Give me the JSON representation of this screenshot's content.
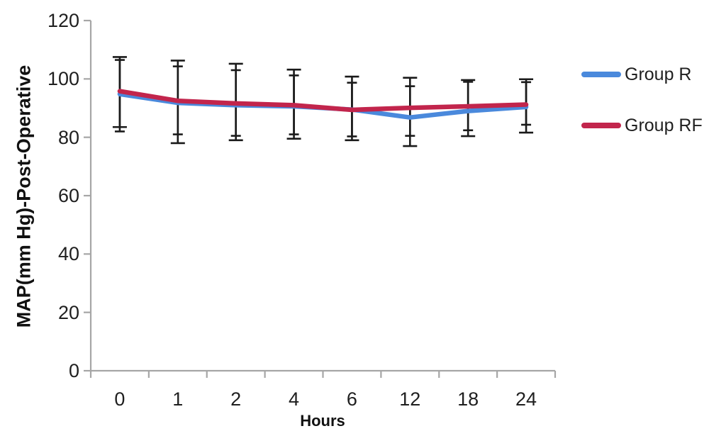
{
  "figure": {
    "background": "#ffffff"
  },
  "chart_data": {
    "type": "line",
    "title": "",
    "xlabel": "Hours",
    "ylabel": "MAP(mm Hg)-Post-Operative",
    "categories": [
      "0",
      "1",
      "2",
      "4",
      "6",
      "12",
      "18",
      "24"
    ],
    "yticks": [
      0,
      20,
      40,
      60,
      80,
      100,
      120
    ],
    "ylim": [
      0,
      120
    ],
    "grid": false,
    "legend_position": "right",
    "axis_color": "#a6a6a6",
    "errorbar_color": "#1a1a1a",
    "text_color": "#1f1f1f",
    "series": [
      {
        "name": "Group R",
        "color": "#4a89dc",
        "values": [
          94.8,
          91.8,
          91.0,
          90.6,
          89.5,
          86.8,
          89.0,
          90.4
        ],
        "error_upper": [
          107.5,
          106.3,
          105.2,
          103.2,
          100.8,
          100.4,
          99.6,
          99.9
        ],
        "error_lower": [
          83.5,
          78.0,
          79.0,
          79.5,
          79.0,
          77.0,
          80.4,
          81.6
        ]
      },
      {
        "name": "Group RF",
        "color": "#c2254c",
        "values": [
          95.8,
          92.5,
          91.6,
          91.0,
          89.4,
          90.1,
          90.6,
          91.2
        ],
        "error_upper": [
          106.5,
          104.3,
          103.0,
          101.2,
          98.7,
          97.5,
          99.0,
          98.9
        ],
        "error_lower": [
          82.0,
          81.0,
          80.5,
          81.0,
          80.3,
          80.5,
          82.4,
          84.3
        ]
      }
    ]
  }
}
